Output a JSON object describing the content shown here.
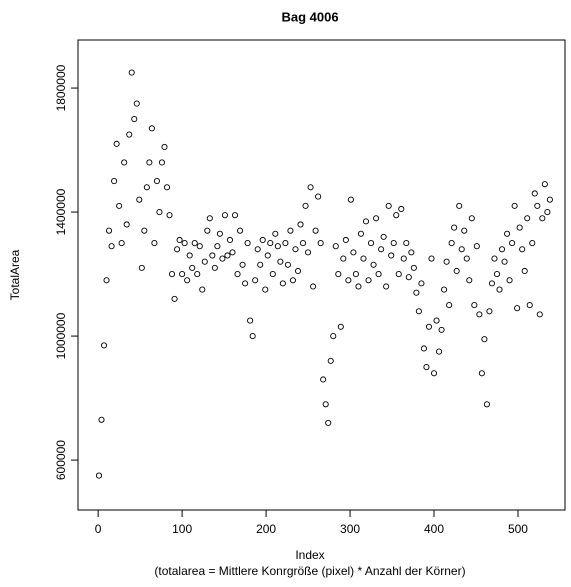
{
  "chart_data": {
    "type": "scatter",
    "title": "Bag 4006",
    "x_label": "Index",
    "subtitle": "(totalarea = Mittlere Konrgröße (pixel) * Anzahl der Körner)",
    "y_label": "TotalArea",
    "color": "#000000",
    "xlim": [
      -24,
      556
    ],
    "xticks": [
      0,
      100,
      200,
      300,
      400,
      500
    ],
    "ylim": [
      439000,
      1955000
    ],
    "yticks": [
      600000,
      1000000,
      1400000,
      1800000
    ],
    "x": [
      1,
      4,
      7,
      10,
      13,
      16,
      19,
      22,
      25,
      28,
      31,
      34,
      37,
      40,
      43,
      46,
      49,
      52,
      55,
      58,
      61,
      64,
      67,
      70,
      73,
      76,
      79,
      82,
      85,
      88,
      91,
      94,
      97,
      100,
      103,
      106,
      109,
      112,
      115,
      118,
      121,
      124,
      127,
      130,
      133,
      136,
      139,
      142,
      145,
      148,
      151,
      154,
      157,
      160,
      163,
      166,
      169,
      172,
      175,
      178,
      181,
      184,
      187,
      190,
      193,
      196,
      199,
      202,
      205,
      208,
      211,
      214,
      217,
      220,
      223,
      226,
      229,
      232,
      235,
      238,
      241,
      244,
      247,
      250,
      253,
      256,
      259,
      262,
      265,
      268,
      271,
      274,
      277,
      280,
      283,
      286,
      289,
      292,
      295,
      298,
      301,
      304,
      307,
      310,
      313,
      316,
      319,
      322,
      325,
      328,
      331,
      334,
      337,
      340,
      343,
      346,
      349,
      352,
      355,
      358,
      361,
      364,
      367,
      370,
      373,
      376,
      379,
      382,
      385,
      388,
      391,
      394,
      397,
      400,
      403,
      406,
      409,
      412,
      415,
      418,
      421,
      424,
      427,
      430,
      433,
      436,
      439,
      442,
      445,
      448,
      451,
      454,
      457,
      460,
      463,
      466,
      469,
      472,
      475,
      478,
      481,
      484,
      487,
      490,
      493,
      496,
      499,
      502,
      505,
      508,
      511,
      514,
      517,
      520,
      523,
      526,
      529,
      532,
      535,
      538
    ],
    "values": [
      550000,
      730000,
      970000,
      1180000,
      1340000,
      1290000,
      1500000,
      1620000,
      1420000,
      1300000,
      1560000,
      1360000,
      1650000,
      1850000,
      1700000,
      1750000,
      1440000,
      1220000,
      1340000,
      1480000,
      1560000,
      1670000,
      1300000,
      1500000,
      1400000,
      1560000,
      1610000,
      1480000,
      1390000,
      1200000,
      1120000,
      1280000,
      1310000,
      1200000,
      1300000,
      1180000,
      1260000,
      1220000,
      1300000,
      1200000,
      1290000,
      1150000,
      1240000,
      1340000,
      1380000,
      1260000,
      1220000,
      1290000,
      1330000,
      1250000,
      1390000,
      1260000,
      1310000,
      1270000,
      1390000,
      1200000,
      1340000,
      1230000,
      1170000,
      1300000,
      1050000,
      1000000,
      1180000,
      1280000,
      1230000,
      1310000,
      1150000,
      1260000,
      1300000,
      1200000,
      1330000,
      1290000,
      1240000,
      1170000,
      1300000,
      1230000,
      1340000,
      1180000,
      1280000,
      1210000,
      1360000,
      1300000,
      1420000,
      1270000,
      1480000,
      1160000,
      1340000,
      1450000,
      1300000,
      860000,
      780000,
      720000,
      920000,
      1000000,
      1290000,
      1200000,
      1030000,
      1250000,
      1310000,
      1180000,
      1440000,
      1270000,
      1200000,
      1160000,
      1330000,
      1250000,
      1370000,
      1180000,
      1300000,
      1230000,
      1380000,
      1200000,
      1280000,
      1320000,
      1160000,
      1420000,
      1260000,
      1300000,
      1390000,
      1200000,
      1410000,
      1250000,
      1300000,
      1190000,
      1270000,
      1220000,
      1140000,
      1080000,
      1170000,
      960000,
      900000,
      1030000,
      1250000,
      880000,
      1050000,
      950000,
      1020000,
      1150000,
      1240000,
      1100000,
      1300000,
      1350000,
      1210000,
      1420000,
      1280000,
      1340000,
      1250000,
      1180000,
      1380000,
      1100000,
      1290000,
      1070000,
      880000,
      990000,
      780000,
      1080000,
      1170000,
      1250000,
      1200000,
      1150000,
      1280000,
      1240000,
      1330000,
      1180000,
      1300000,
      1420000,
      1090000,
      1350000,
      1280000,
      1210000,
      1380000,
      1100000,
      1300000,
      1460000,
      1420000,
      1070000,
      1380000,
      1490000,
      1400000,
      1440000
    ]
  }
}
